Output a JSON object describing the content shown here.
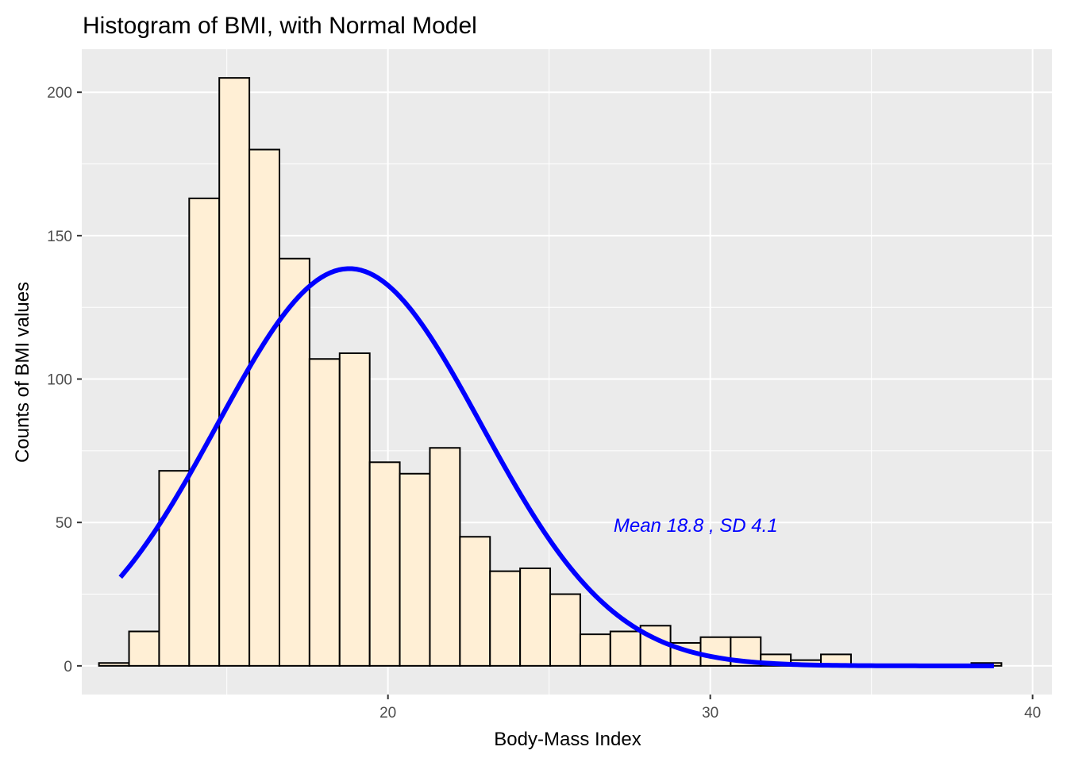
{
  "chart_data": {
    "type": "bar",
    "title": "Histogram of BMI, with Normal Model",
    "xlabel": "Body-Mass Index",
    "ylabel": "Counts of BMI values",
    "xlim": [
      10.5,
      40.6
    ],
    "ylim": [
      -10,
      215
    ],
    "x_ticks": [
      20,
      30,
      40
    ],
    "y_ticks": [
      0,
      50,
      100,
      150,
      200
    ],
    "grid": true,
    "bin_width": 0.9333,
    "bins": [
      {
        "x": 11.5,
        "count": 1
      },
      {
        "x": 12.433,
        "count": 12
      },
      {
        "x": 13.367,
        "count": 68
      },
      {
        "x": 14.3,
        "count": 163
      },
      {
        "x": 15.233,
        "count": 205
      },
      {
        "x": 16.167,
        "count": 180
      },
      {
        "x": 17.1,
        "count": 142
      },
      {
        "x": 18.033,
        "count": 107
      },
      {
        "x": 18.967,
        "count": 109
      },
      {
        "x": 19.9,
        "count": 71
      },
      {
        "x": 20.833,
        "count": 67
      },
      {
        "x": 21.767,
        "count": 76
      },
      {
        "x": 22.7,
        "count": 45
      },
      {
        "x": 23.633,
        "count": 33
      },
      {
        "x": 24.567,
        "count": 34
      },
      {
        "x": 25.5,
        "count": 25
      },
      {
        "x": 26.433,
        "count": 11
      },
      {
        "x": 27.367,
        "count": 12
      },
      {
        "x": 28.3,
        "count": 14
      },
      {
        "x": 29.233,
        "count": 8
      },
      {
        "x": 30.167,
        "count": 10
      },
      {
        "x": 31.1,
        "count": 10
      },
      {
        "x": 32.033,
        "count": 4
      },
      {
        "x": 32.967,
        "count": 2
      },
      {
        "x": 33.9,
        "count": 4
      },
      {
        "x": 34.833,
        "count": 0
      },
      {
        "x": 35.767,
        "count": 0
      },
      {
        "x": 36.7,
        "count": 0
      },
      {
        "x": 37.633,
        "count": 0
      },
      {
        "x": 38.567,
        "count": 1
      }
    ],
    "normal_curve": {
      "mean": 18.8,
      "sd": 4.1,
      "peak_count": 138.5,
      "x_range": [
        11.7,
        38.8
      ],
      "color": "#0000FF"
    },
    "annotation": {
      "text": "Mean 18.8 , SD 4.1",
      "x": 27.0,
      "y": 49,
      "color": "#0000FF"
    },
    "colors": {
      "panel_background": "#EBEBEB",
      "gridline": "#FFFFFF",
      "bar_fill": "#FFEFD5",
      "bar_outline": "#000000"
    }
  }
}
